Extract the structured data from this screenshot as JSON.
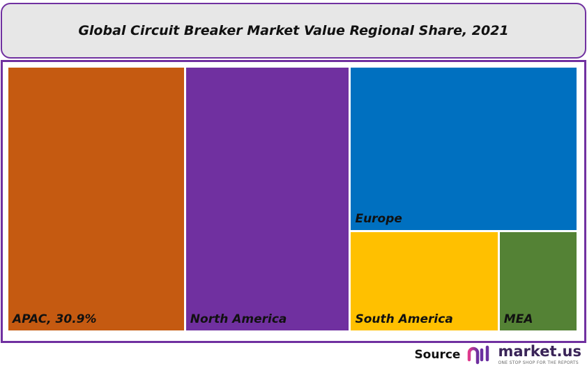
{
  "chart_data": {
    "type": "treemap",
    "title": "Global Circuit Breaker Market Value Regional Share, 2021",
    "tiles": [
      {
        "name": "APAC",
        "label": "APAC, 30.9%",
        "value": 30.9,
        "color": "#c55a11"
      },
      {
        "name": "North America",
        "label": "North America",
        "value": 28.7,
        "color": "#7030a0"
      },
      {
        "name": "Europe",
        "label": "Europe",
        "value": 24.6,
        "color": "#0070c0"
      },
      {
        "name": "South America",
        "label": "South America",
        "value": 9.8,
        "color": "#ffc000"
      },
      {
        "name": "MEA",
        "label": "MEA",
        "value": 5.2,
        "color": "#548235"
      }
    ]
  },
  "footer": {
    "source_label": "Source",
    "brand": "market.us",
    "tagline": "ONE STOP SHOP FOR THE REPORTS"
  }
}
